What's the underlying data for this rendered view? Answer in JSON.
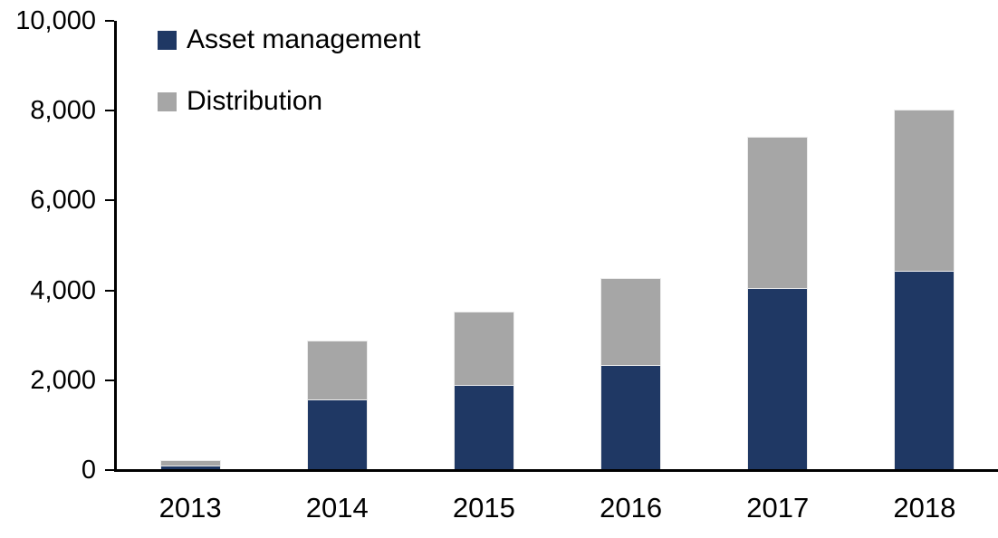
{
  "chart_data": {
    "type": "bar",
    "stacked": true,
    "title": "",
    "xlabel": "",
    "ylabel": "",
    "categories": [
      "2013",
      "2014",
      "2015",
      "2016",
      "2017",
      "2018"
    ],
    "series": [
      {
        "name": "Asset management",
        "color": "#1F3864",
        "values": [
          100,
          1570,
          1900,
          2330,
          4050,
          4440
        ]
      },
      {
        "name": "Distribution",
        "color": "#A6A6A6",
        "values": [
          100,
          1300,
          1600,
          1920,
          3350,
          3560
        ]
      }
    ],
    "totals": [
      200,
      2870,
      3500,
      4250,
      7400,
      8000
    ],
    "ylim": [
      0,
      10000
    ],
    "ytick_values": [
      0,
      2000,
      4000,
      6000,
      8000,
      10000
    ],
    "ytick_labels": [
      "0",
      "2,000",
      "4,000",
      "6,000",
      "8,000",
      "10,000"
    ],
    "legend_position": "top-left",
    "grid": false,
    "axis_color": "#000000",
    "background_color": "#FFFFFF"
  }
}
